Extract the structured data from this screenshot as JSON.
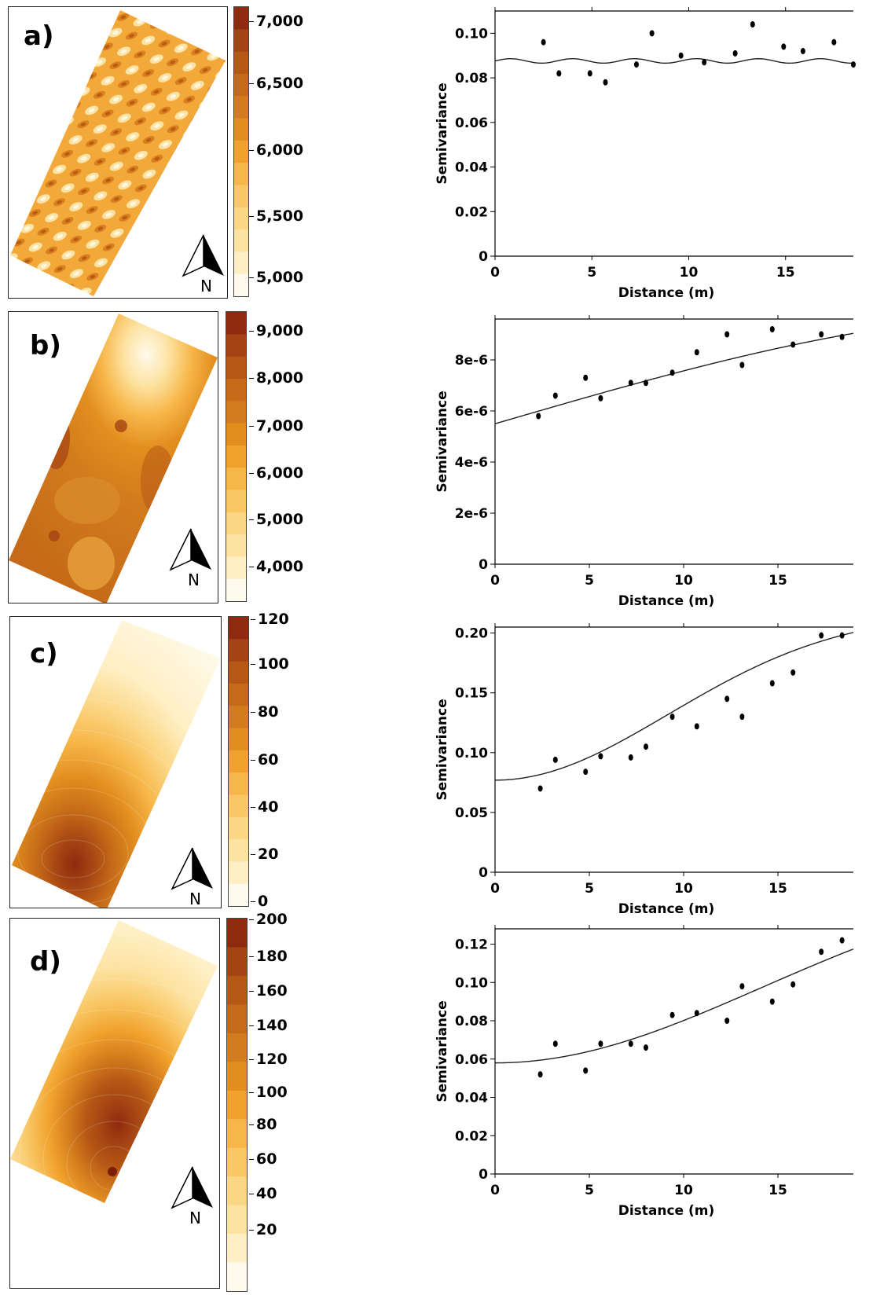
{
  "colors": [
    "#fffaed",
    "#ffefc4",
    "#fde3a2",
    "#fbd684",
    "#f9c765",
    "#f7b648",
    "#f1a22d",
    "#e28e1f",
    "#d37c1d",
    "#c46a18",
    "#b55715",
    "#a44313",
    "#8f2a0e"
  ],
  "panels": [
    {
      "label": "a)",
      "north_label": "N",
      "colorbar_ticks": [
        "7,000",
        "6,500",
        "6,000",
        "5,500",
        "5,000"
      ],
      "chart_data": {
        "type": "scatter",
        "xlabel": "Distance (m)",
        "ylabel": "Semivariance",
        "xlim": [
          0,
          18.5
        ],
        "ylim": [
          0,
          0.11
        ],
        "xticks": [
          "0",
          "5",
          "10",
          "15"
        ],
        "xtick_values": [
          0,
          5,
          10,
          15
        ],
        "yticks": [
          "0",
          "0.02",
          "0.04",
          "0.06",
          "0.08",
          "0.10"
        ],
        "ytick_values": [
          0,
          0.02,
          0.04,
          0.06,
          0.08,
          0.1
        ],
        "points": [
          [
            2.5,
            0.096
          ],
          [
            3.3,
            0.082
          ],
          [
            4.9,
            0.082
          ],
          [
            5.7,
            0.078
          ],
          [
            7.3,
            0.086
          ],
          [
            8.1,
            0.1
          ],
          [
            9.6,
            0.09
          ],
          [
            10.8,
            0.087
          ],
          [
            12.4,
            0.091
          ],
          [
            13.3,
            0.104
          ],
          [
            14.9,
            0.094
          ],
          [
            15.9,
            0.092
          ],
          [
            17.5,
            0.096
          ],
          [
            18.5,
            0.086
          ]
        ],
        "fit_model": "wave",
        "fit_params": {
          "nugget": 0.0876,
          "amp": 0.001,
          "period": 3.2
        }
      }
    },
    {
      "label": "b)",
      "north_label": "N",
      "colorbar_ticks": [
        "9,000",
        "8,000",
        "7,000",
        "6,000",
        "5,000",
        "4,000"
      ],
      "chart_data": {
        "type": "scatter",
        "xlabel": "Distance (m)",
        "ylabel": "Semivariance",
        "xlim": [
          0,
          19
        ],
        "ylim": [
          0,
          9.6e-06
        ],
        "xticks": [
          "0",
          "5",
          "10",
          "15"
        ],
        "xtick_values": [
          0,
          5,
          10,
          15
        ],
        "yticks": [
          "0",
          "2e-6",
          "4e-6",
          "6e-6",
          "8e-6"
        ],
        "ytick_values": [
          0,
          2e-06,
          4e-06,
          6e-06,
          8e-06
        ],
        "points": [
          [
            2.3,
            5.8e-06
          ],
          [
            3.2,
            6.6e-06
          ],
          [
            4.8,
            7.3e-06
          ],
          [
            5.6,
            6.5e-06
          ],
          [
            7.2,
            7.1e-06
          ],
          [
            8.0,
            7.1e-06
          ],
          [
            9.4,
            7.5e-06
          ],
          [
            10.7,
            8.3e-06
          ],
          [
            12.3,
            9e-06
          ],
          [
            13.1,
            7.8e-06
          ],
          [
            14.7,
            9.2e-06
          ],
          [
            15.8,
            8.6e-06
          ],
          [
            17.3,
            9e-06
          ],
          [
            18.4,
            8.9e-06
          ]
        ],
        "fit_model": "spherical",
        "fit_params": {
          "nugget": 5.5e-06,
          "sill": 4.3e-06,
          "range": 30
        }
      }
    },
    {
      "label": "c)",
      "north_label": "N",
      "colorbar_ticks": [
        "120",
        "100",
        "80",
        "60",
        "40",
        "20",
        "0"
      ],
      "chart_data": {
        "type": "scatter",
        "xlabel": "Distance (m)",
        "ylabel": "Semivariance",
        "xlim": [
          0,
          19
        ],
        "ylim": [
          0,
          0.205
        ],
        "xticks": [
          "0",
          "5",
          "10",
          "15"
        ],
        "xtick_values": [
          0,
          5,
          10,
          15
        ],
        "yticks": [
          "0",
          "0.05",
          "0.10",
          "0.15",
          "0.20"
        ],
        "ytick_values": [
          0,
          0.05,
          0.1,
          0.15,
          0.2
        ],
        "points": [
          [
            2.4,
            0.07
          ],
          [
            3.2,
            0.094
          ],
          [
            4.8,
            0.084
          ],
          [
            5.6,
            0.097
          ],
          [
            7.2,
            0.096
          ],
          [
            8.0,
            0.105
          ],
          [
            9.4,
            0.13
          ],
          [
            10.7,
            0.122
          ],
          [
            12.3,
            0.145
          ],
          [
            13.1,
            0.13
          ],
          [
            14.7,
            0.158
          ],
          [
            15.8,
            0.167
          ],
          [
            17.3,
            0.198
          ],
          [
            18.4,
            0.198
          ]
        ],
        "fit_model": "gaussian",
        "fit_params": {
          "nugget": 0.077,
          "sill": 0.14,
          "range": 13
        }
      }
    },
    {
      "label": "d)",
      "north_label": "N",
      "colorbar_ticks": [
        "200",
        "180",
        "160",
        "140",
        "120",
        "100",
        "80",
        "60",
        "40",
        "20"
      ],
      "chart_data": {
        "type": "scatter",
        "xlabel": "Distance (m)",
        "ylabel": "Semivariance",
        "xlim": [
          0,
          19
        ],
        "ylim": [
          0,
          0.128
        ],
        "xticks": [
          "0",
          "5",
          "10",
          "15"
        ],
        "xtick_values": [
          0,
          5,
          10,
          15
        ],
        "yticks": [
          "0",
          "0.02",
          "0.04",
          "0.06",
          "0.08",
          "0.10",
          "0.12"
        ],
        "ytick_values": [
          0,
          0.02,
          0.04,
          0.06,
          0.08,
          0.1,
          0.12
        ],
        "points": [
          [
            2.4,
            0.052
          ],
          [
            3.2,
            0.068
          ],
          [
            4.8,
            0.054
          ],
          [
            5.6,
            0.068
          ],
          [
            7.2,
            0.068
          ],
          [
            8.0,
            0.066
          ],
          [
            9.4,
            0.083
          ],
          [
            10.7,
            0.084
          ],
          [
            12.3,
            0.08
          ],
          [
            13.1,
            0.098
          ],
          [
            14.7,
            0.09
          ],
          [
            15.8,
            0.099
          ],
          [
            17.3,
            0.116
          ],
          [
            18.4,
            0.122
          ]
        ],
        "fit_model": "gaussian",
        "fit_params": {
          "nugget": 0.058,
          "sill": 0.1,
          "range": 20
        }
      }
    }
  ]
}
